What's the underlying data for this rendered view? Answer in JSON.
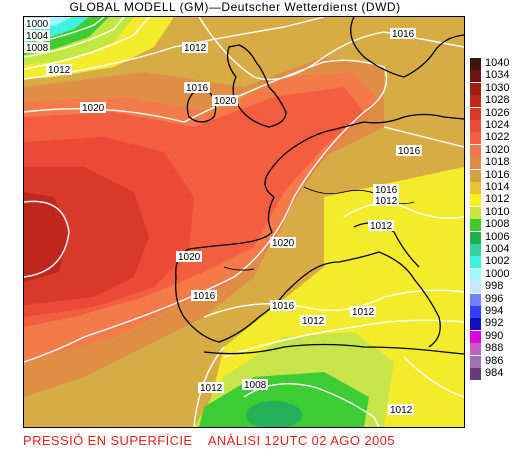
{
  "header": {
    "title": "GLOBAL MODELL (GM)—Deutscher Wetterdienst (DWD)"
  },
  "footer": {
    "caption": "PRESSIÓ EN SUPERFÍCIE    ANÀLISI 12UTC 02 AGO 2005"
  },
  "legend": {
    "items": [
      {
        "value": "1040",
        "color": "#3c1410"
      },
      {
        "value": "1034",
        "color": "#6e1410"
      },
      {
        "value": "1030",
        "color": "#9e1e14"
      },
      {
        "value": "1028",
        "color": "#c0281e"
      },
      {
        "value": "1026",
        "color": "#d83a2a"
      },
      {
        "value": "1024",
        "color": "#ec4a36"
      },
      {
        "value": "1022",
        "color": "#f45e40"
      },
      {
        "value": "1020",
        "color": "#f4764a"
      },
      {
        "value": "1018",
        "color": "#e08a44"
      },
      {
        "value": "1016",
        "color": "#d4a040"
      },
      {
        "value": "1014",
        "color": "#ecc030"
      },
      {
        "value": "1012",
        "color": "#f8f020"
      },
      {
        "value": "1010",
        "color": "#c0e840"
      },
      {
        "value": "1008",
        "color": "#40cc30"
      },
      {
        "value": "1006",
        "color": "#20b050"
      },
      {
        "value": "1004",
        "color": "#30d0a0"
      },
      {
        "value": "1002",
        "color": "#40f0e0"
      },
      {
        "value": "1000",
        "color": "#a0f8ff"
      },
      {
        "value": "998",
        "color": "#c8e8ff"
      },
      {
        "value": "996",
        "color": "#7080ff"
      },
      {
        "value": "994",
        "color": "#3040ff"
      },
      {
        "value": "992",
        "color": "#1010c0"
      },
      {
        "value": "990",
        "color": "#e000e0"
      },
      {
        "value": "988",
        "color": "#c060c0"
      },
      {
        "value": "986",
        "color": "#a070b0"
      },
      {
        "value": "984",
        "color": "#6a3a7a"
      }
    ]
  },
  "isobar_labels": [
    {
      "text": "1000"
    },
    {
      "text": "1004"
    },
    {
      "text": "1008"
    },
    {
      "text": "1012"
    },
    {
      "text": "1012"
    },
    {
      "text": "1016"
    },
    {
      "text": "1020"
    },
    {
      "text": "1020"
    },
    {
      "text": "1016"
    },
    {
      "text": "1016"
    },
    {
      "text": "1016"
    },
    {
      "text": "1012"
    },
    {
      "text": "1012"
    },
    {
      "text": "1020"
    },
    {
      "text": "1020"
    },
    {
      "text": "1016"
    },
    {
      "text": "1016"
    },
    {
      "text": "1012"
    },
    {
      "text": "1012"
    },
    {
      "text": "1012"
    },
    {
      "text": "1008"
    },
    {
      "text": "1012"
    }
  ]
}
